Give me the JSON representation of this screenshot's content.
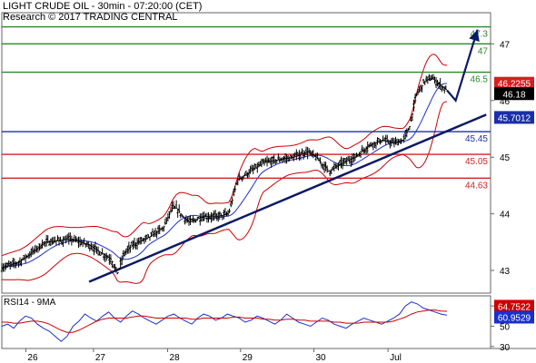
{
  "header": {
    "line1": "LIGHT CRUDE OIL - 30min - 07:20:00 (CET)",
    "line2": "Research © 2017 TRADING CENTRAL"
  },
  "colors": {
    "price": "#000000",
    "bollinger": "#cc0000",
    "moving_average": "#1a2fcc",
    "trendline": "#0a1a66",
    "resistance": "#2a8a2a",
    "pivot": "#1a2faa",
    "support": "#d42020",
    "rsi": "#1a2fcc",
    "rsi_ma": "#cc0000",
    "price_tag": "#d42020",
    "ma_tag": "#1a2faa",
    "last_tag": "#000000"
  },
  "chart_data": [
    {
      "type": "candlestick",
      "title": "LIGHT CRUDE OIL - 30min - 07:20:00 (CET)",
      "x_labels": [
        "26",
        "27",
        "28",
        "29",
        "30",
        "Jul"
      ],
      "y_ticks": [
        43,
        44,
        45,
        46,
        47
      ],
      "ylim": [
        42.6,
        47.55
      ],
      "levels": [
        {
          "value": 47.3,
          "label": "47.3",
          "kind": "resistance"
        },
        {
          "value": 47,
          "label": "47",
          "kind": "resistance"
        },
        {
          "value": 46.5,
          "label": "46.5",
          "kind": "resistance"
        },
        {
          "value": 45.45,
          "label": "45.45",
          "kind": "pivot"
        },
        {
          "value": 45.05,
          "label": "45.05",
          "kind": "support"
        },
        {
          "value": 44.63,
          "label": "44.63",
          "kind": "support"
        }
      ],
      "price_path": [
        [
          0,
          43.05
        ],
        [
          4,
          43.15
        ],
        [
          10,
          43.5
        ],
        [
          16,
          43.55
        ],
        [
          20,
          43.45
        ],
        [
          25,
          43.2
        ],
        [
          26.5,
          42.95
        ],
        [
          28,
          43.3
        ],
        [
          30,
          43.45
        ],
        [
          34,
          43.6
        ],
        [
          37,
          43.75
        ],
        [
          39,
          44.1
        ],
        [
          40,
          44.1
        ],
        [
          41.5,
          43.95
        ],
        [
          43,
          43.85
        ],
        [
          46,
          43.95
        ],
        [
          49,
          43.95
        ],
        [
          52,
          44.0
        ],
        [
          54,
          44.6
        ],
        [
          57,
          44.75
        ],
        [
          60,
          44.9
        ],
        [
          63,
          44.95
        ],
        [
          67,
          45.0
        ],
        [
          70,
          45.1
        ],
        [
          72,
          45.0
        ],
        [
          75,
          44.75
        ],
        [
          78,
          44.9
        ],
        [
          81,
          45.0
        ],
        [
          84,
          45.2
        ],
        [
          87,
          45.3
        ],
        [
          90,
          45.25
        ],
        [
          92,
          45.3
        ],
        [
          93.5,
          45.55
        ],
        [
          95,
          46.1
        ],
        [
          97,
          46.35
        ],
        [
          98.5,
          46.4
        ],
        [
          100,
          46.3
        ],
        [
          102,
          46.18
        ]
      ],
      "projection": [
        [
          102,
          46.18
        ],
        [
          104,
          46.0
        ],
        [
          109,
          47.25
        ]
      ],
      "trendline": [
        [
          20,
          42.8
        ],
        [
          111,
          45.75
        ]
      ],
      "bollinger_width": 0.42,
      "last_value": {
        "value": 46.18,
        "label": "46.18"
      },
      "upper_band_value": {
        "value": 46.2255,
        "label": "46.2255"
      },
      "ma_value": {
        "value": 45.7012,
        "label": "45.7012"
      }
    },
    {
      "type": "line",
      "title": "RSI14 - 9MA",
      "series": [
        {
          "name": "RSI14",
          "values": [
            50,
            52,
            48,
            55,
            60,
            58,
            52,
            48,
            45,
            40,
            35,
            40,
            50,
            55,
            62,
            58,
            55,
            60,
            64,
            58,
            54,
            60,
            65,
            62,
            58,
            55,
            52,
            56,
            60,
            62,
            58,
            55,
            52,
            58,
            62,
            60,
            56,
            58,
            62,
            60,
            58,
            54,
            56,
            60,
            58,
            55,
            52,
            56,
            62,
            58,
            54,
            52,
            50,
            54,
            58,
            56,
            52,
            50,
            48,
            52,
            55,
            58,
            56,
            54,
            52,
            55,
            58,
            62,
            70,
            74,
            72,
            68,
            66,
            64,
            62,
            60.95
          ]
        },
        {
          "name": "9MA",
          "values": [
            54,
            54,
            53,
            53,
            54,
            55,
            55,
            54,
            52,
            49,
            46,
            44,
            44,
            46,
            49,
            52,
            55,
            57,
            58,
            58,
            58,
            58,
            59,
            60,
            60,
            59,
            58,
            58,
            58,
            58,
            58,
            58,
            57,
            57,
            58,
            58,
            58,
            58,
            58,
            59,
            59,
            58,
            58,
            58,
            57,
            57,
            56,
            56,
            57,
            57,
            56,
            56,
            55,
            55,
            55,
            55,
            54,
            54,
            53,
            53,
            53,
            54,
            54,
            54,
            54,
            54,
            55,
            57,
            59,
            62,
            64,
            65,
            66,
            66,
            65,
            64.75
          ]
        }
      ],
      "y_ticks": [
        30,
        50,
        70
      ],
      "ylim": [
        28,
        80
      ],
      "last_values": [
        {
          "value": 64.7522,
          "label": "64.7522"
        },
        {
          "value": 60.9529,
          "label": "60.9529"
        }
      ]
    }
  ]
}
